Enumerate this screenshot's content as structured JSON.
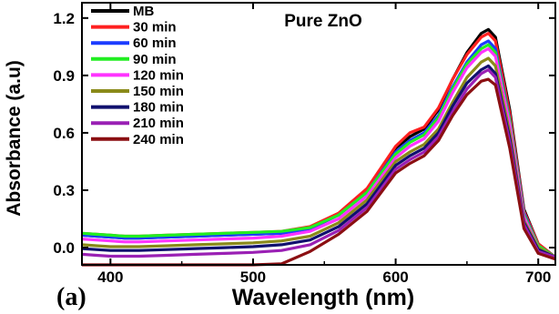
{
  "chart_data": {
    "type": "line",
    "title": "Pure ZnO",
    "panel_label": "(a)",
    "xlabel": "Wavelength (nm)",
    "ylabel": "Absorbance (a.u)",
    "xlim": [
      380,
      712
    ],
    "ylim": [
      -0.09,
      1.28
    ],
    "xticks": [
      400,
      500,
      600,
      700
    ],
    "yticks": [
      0.0,
      0.3,
      0.6,
      0.9,
      1.2
    ],
    "ytick_labels": [
      "0.0",
      "0.3",
      "0.6",
      "0.9",
      "1.2"
    ],
    "legend_position": "top-left",
    "x": [
      380,
      390,
      400,
      410,
      420,
      440,
      460,
      480,
      500,
      520,
      540,
      560,
      580,
      600,
      610,
      620,
      630,
      640,
      650,
      660,
      665,
      670,
      680,
      690,
      700,
      712
    ],
    "series": [
      {
        "name": "MB",
        "color": "#000000",
        "values": [
          0.065,
          0.06,
          0.055,
          0.05,
          0.05,
          0.055,
          0.06,
          0.065,
          0.07,
          0.075,
          0.1,
          0.17,
          0.3,
          0.52,
          0.58,
          0.62,
          0.72,
          0.88,
          1.02,
          1.12,
          1.14,
          1.1,
          0.72,
          0.2,
          0.02,
          -0.05
        ]
      },
      {
        "name": "30 min",
        "color": "#ff2020",
        "values": [
          0.075,
          0.07,
          0.065,
          0.06,
          0.06,
          0.065,
          0.07,
          0.075,
          0.08,
          0.085,
          0.11,
          0.18,
          0.31,
          0.53,
          0.6,
          0.63,
          0.73,
          0.88,
          1.01,
          1.1,
          1.12,
          1.08,
          0.7,
          0.19,
          0.02,
          -0.05
        ]
      },
      {
        "name": "60 min",
        "color": "#1c3cff",
        "values": [
          0.065,
          0.06,
          0.055,
          0.05,
          0.05,
          0.055,
          0.06,
          0.065,
          0.07,
          0.075,
          0.1,
          0.17,
          0.29,
          0.5,
          0.56,
          0.6,
          0.69,
          0.84,
          0.97,
          1.06,
          1.08,
          1.04,
          0.67,
          0.18,
          0.01,
          -0.05
        ]
      },
      {
        "name": "90 min",
        "color": "#22ee22",
        "values": [
          0.075,
          0.07,
          0.065,
          0.06,
          0.06,
          0.065,
          0.07,
          0.075,
          0.08,
          0.085,
          0.105,
          0.17,
          0.29,
          0.49,
          0.55,
          0.59,
          0.68,
          0.83,
          0.96,
          1.04,
          1.06,
          1.02,
          0.66,
          0.17,
          0.01,
          -0.05
        ]
      },
      {
        "name": "120 min",
        "color": "#ff33ff",
        "values": [
          0.045,
          0.04,
          0.035,
          0.03,
          0.03,
          0.035,
          0.04,
          0.045,
          0.05,
          0.06,
          0.085,
          0.15,
          0.27,
          0.47,
          0.53,
          0.57,
          0.66,
          0.81,
          0.94,
          1.02,
          1.04,
          1.0,
          0.64,
          0.16,
          0.0,
          -0.05
        ]
      },
      {
        "name": "150 min",
        "color": "#8a8a1a",
        "values": [
          0.015,
          0.01,
          0.005,
          0.005,
          0.005,
          0.01,
          0.015,
          0.02,
          0.025,
          0.035,
          0.06,
          0.13,
          0.25,
          0.45,
          0.5,
          0.54,
          0.62,
          0.76,
          0.89,
          0.97,
          0.99,
          0.95,
          0.6,
          0.14,
          0.0,
          -0.05
        ]
      },
      {
        "name": "180 min",
        "color": "#10106e",
        "values": [
          -0.005,
          -0.01,
          -0.015,
          -0.015,
          -0.015,
          -0.01,
          -0.005,
          0.0,
          0.005,
          0.015,
          0.04,
          0.11,
          0.23,
          0.43,
          0.48,
          0.52,
          0.6,
          0.74,
          0.86,
          0.93,
          0.95,
          0.91,
          0.57,
          0.13,
          -0.01,
          -0.05
        ]
      },
      {
        "name": "210 min",
        "color": "#9a20b4",
        "values": [
          -0.035,
          -0.04,
          -0.045,
          -0.045,
          -0.045,
          -0.04,
          -0.035,
          -0.03,
          -0.025,
          -0.015,
          0.015,
          0.09,
          0.21,
          0.41,
          0.46,
          0.5,
          0.58,
          0.71,
          0.83,
          0.91,
          0.93,
          0.89,
          0.55,
          0.12,
          -0.02,
          -0.05
        ]
      },
      {
        "name": "240 min",
        "color": "#8b0f12",
        "values": [
          -0.09,
          -0.09,
          -0.09,
          -0.09,
          -0.09,
          -0.09,
          -0.09,
          -0.09,
          -0.09,
          -0.085,
          -0.02,
          0.07,
          0.19,
          0.39,
          0.44,
          0.48,
          0.56,
          0.69,
          0.8,
          0.87,
          0.88,
          0.85,
          0.52,
          0.1,
          -0.03,
          -0.06
        ]
      }
    ]
  }
}
